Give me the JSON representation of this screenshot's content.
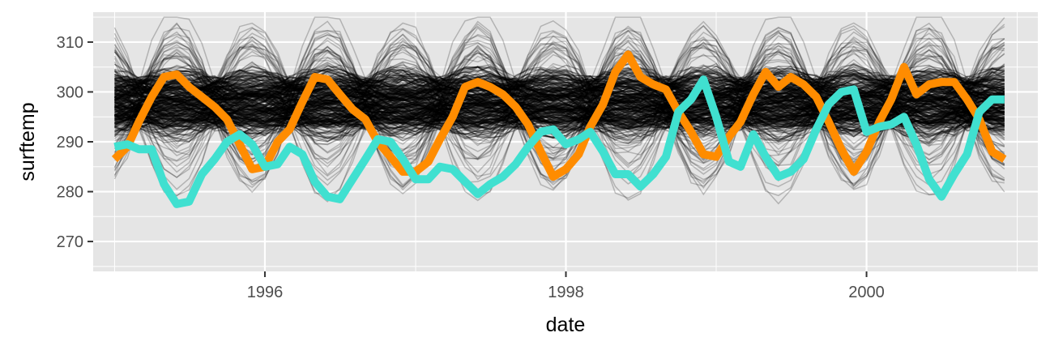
{
  "chart_data": {
    "type": "line",
    "title": "",
    "xlabel": "date",
    "ylabel": "surftemp",
    "xlim": [
      "1994-11-10",
      "2001-02-20"
    ],
    "ylim": [
      264,
      316
    ],
    "x_ticks": [
      "1996-01-01",
      "1998-01-01",
      "2000-01-01"
    ],
    "x_tick_labels": [
      "1996",
      "1998",
      "2000"
    ],
    "y_ticks": [
      270,
      280,
      290,
      300,
      310
    ],
    "y_tick_labels": [
      "270",
      "280",
      "290",
      "300",
      "310"
    ],
    "grid": true,
    "legend": "none",
    "background_color": "#e5e5e5",
    "background_series": {
      "description": "many semi-transparent black lines (one per location), monthly surftemp",
      "color": "#000000",
      "band_low": 293,
      "band_high": 302.5
    },
    "series": [
      {
        "color": "#ff8c00",
        "x": [
          "1995-01",
          "1995-02",
          "1995-03",
          "1995-04",
          "1995-05",
          "1995-06",
          "1995-07",
          "1995-08",
          "1995-09",
          "1995-10",
          "1995-11",
          "1995-12",
          "1996-01",
          "1996-02",
          "1996-03",
          "1996-04",
          "1996-05",
          "1996-06",
          "1996-07",
          "1996-08",
          "1996-09",
          "1996-10",
          "1996-11",
          "1996-12",
          "1997-01",
          "1997-02",
          "1997-03",
          "1997-04",
          "1997-05",
          "1997-06",
          "1997-07",
          "1997-08",
          "1997-09",
          "1997-10",
          "1997-11",
          "1997-12",
          "1998-01",
          "1998-02",
          "1998-03",
          "1998-04",
          "1998-05",
          "1998-06",
          "1998-07",
          "1998-08",
          "1998-09",
          "1998-10",
          "1998-11",
          "1998-12",
          "1999-01",
          "1999-02",
          "1999-03",
          "1999-04",
          "1999-05",
          "1999-06",
          "1999-07",
          "1999-08",
          "1999-09",
          "1999-10",
          "1999-11",
          "1999-12",
          "2000-01",
          "2000-02",
          "2000-03",
          "2000-04",
          "2000-05",
          "2000-06",
          "2000-07",
          "2000-08",
          "2000-09",
          "2000-10",
          "2000-11",
          "2000-12"
        ],
        "values": [
          286.5,
          289.0,
          294.0,
          299.0,
          303.0,
          303.5,
          301.0,
          299.0,
          297.0,
          294.5,
          289.5,
          284.5,
          285.0,
          290.0,
          292.5,
          298.0,
          303.0,
          302.5,
          299.5,
          296.5,
          294.5,
          290.0,
          287.0,
          284.0,
          284.0,
          286.0,
          290.5,
          295.0,
          301.0,
          302.0,
          301.0,
          299.5,
          297.0,
          293.5,
          288.0,
          283.0,
          284.5,
          287.5,
          293.0,
          297.5,
          304.0,
          307.5,
          303.0,
          301.5,
          300.5,
          296.0,
          292.0,
          287.5,
          287.0,
          291.0,
          294.0,
          299.5,
          304.0,
          301.0,
          303.0,
          301.5,
          299.0,
          294.0,
          288.5,
          284.0,
          288.0,
          294.0,
          298.5,
          305.0,
          299.5,
          301.5,
          302.0,
          302.0,
          298.5,
          294.5,
          288.0,
          286.5
        ]
      },
      {
        "color": "#40e0d0",
        "x": [
          "1995-01",
          "1995-02",
          "1995-03",
          "1995-04",
          "1995-05",
          "1995-06",
          "1995-07",
          "1995-08",
          "1995-09",
          "1995-10",
          "1995-11",
          "1995-12",
          "1996-01",
          "1996-02",
          "1996-03",
          "1996-04",
          "1996-05",
          "1996-06",
          "1996-07",
          "1996-08",
          "1996-09",
          "1996-10",
          "1996-11",
          "1996-12",
          "1997-01",
          "1997-02",
          "1997-03",
          "1997-04",
          "1997-05",
          "1997-06",
          "1997-07",
          "1997-08",
          "1997-09",
          "1997-10",
          "1997-11",
          "1997-12",
          "1998-01",
          "1998-02",
          "1998-03",
          "1998-04",
          "1998-05",
          "1998-06",
          "1998-07",
          "1998-08",
          "1998-09",
          "1998-10",
          "1998-11",
          "1998-12",
          "1999-01",
          "1999-02",
          "1999-03",
          "1999-04",
          "1999-05",
          "1999-06",
          "1999-07",
          "1999-08",
          "1999-09",
          "1999-10",
          "1999-11",
          "1999-12",
          "2000-01",
          "2000-02",
          "2000-03",
          "2000-04",
          "2000-05",
          "2000-06",
          "2000-07",
          "2000-08",
          "2000-09",
          "2000-10",
          "2000-11",
          "2000-12"
        ],
        "values": [
          289.0,
          289.5,
          288.5,
          288.5,
          281.5,
          277.5,
          278.0,
          283.5,
          286.5,
          290.0,
          291.5,
          289.5,
          285.0,
          285.5,
          289.0,
          287.5,
          282.0,
          279.0,
          278.5,
          282.5,
          286.5,
          290.5,
          290.0,
          286.5,
          282.5,
          282.5,
          285.0,
          284.5,
          282.0,
          279.5,
          281.5,
          283.0,
          285.5,
          289.0,
          292.0,
          292.5,
          289.5,
          290.5,
          292.0,
          288.0,
          283.5,
          283.5,
          281.0,
          283.5,
          287.0,
          296.0,
          298.5,
          302.5,
          295.0,
          286.0,
          285.0,
          291.5,
          287.0,
          283.0,
          284.0,
          286.5,
          292.5,
          297.5,
          300.0,
          300.5,
          292.0,
          293.0,
          293.5,
          295.0,
          289.5,
          282.5,
          279.0,
          283.5,
          287.5,
          296.0,
          298.5,
          298.5
        ]
      }
    ]
  }
}
